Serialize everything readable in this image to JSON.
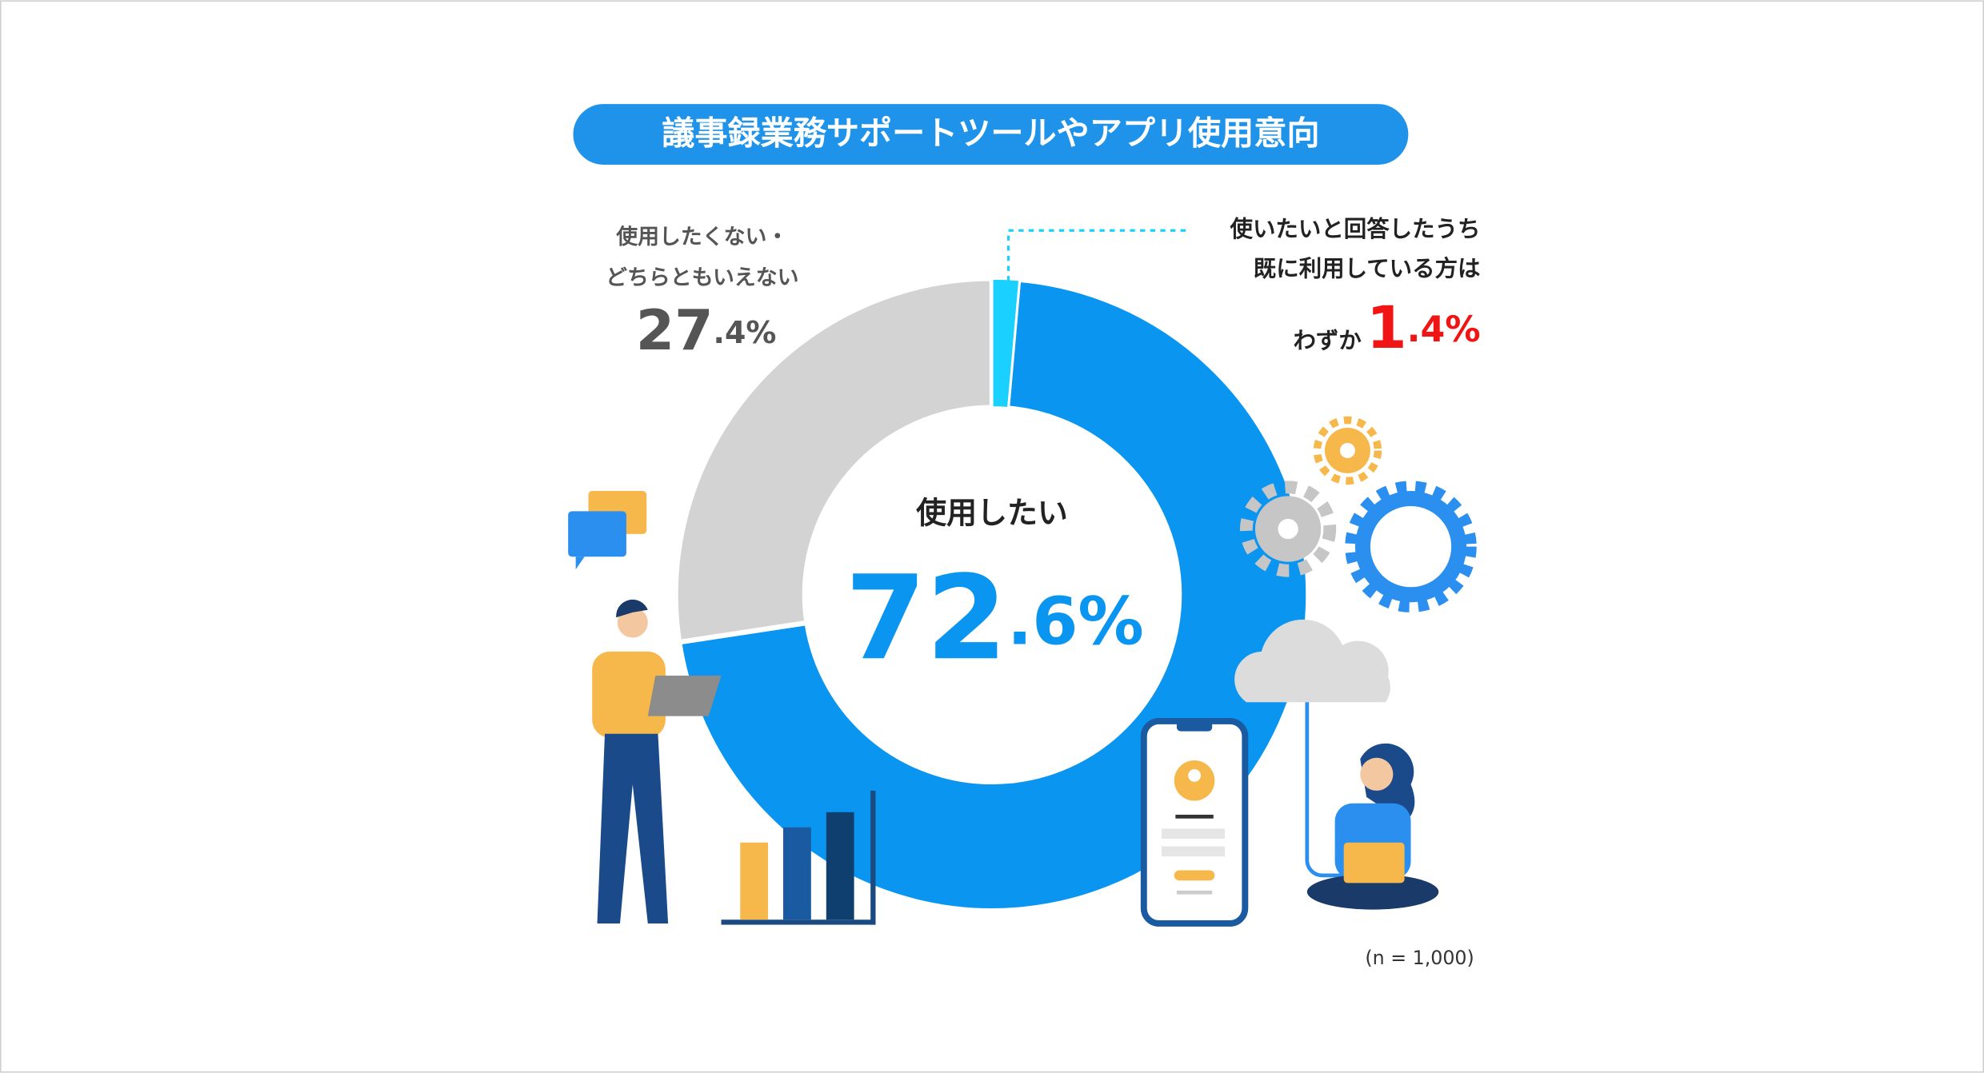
{
  "chart_data": {
    "type": "donut",
    "title": "議事録業務サポートツールやアプリ使用意向",
    "segments": [
      {
        "name_lines": [
          "使用したい"
        ],
        "value": 72.6,
        "value_label": "72.6%",
        "color": "#0a96f0"
      },
      {
        "name_lines": [
          "使用したくない・",
          "どちらともいえない"
        ],
        "value": 27.4,
        "value_label": "27.4%",
        "color": "#d3d3d3"
      }
    ],
    "highlight": {
      "lines": [
        "使いたいと回答したうち",
        "既に利用している方は"
      ],
      "prefix": "わずか",
      "value": 1.4,
      "value_label": "1.4%",
      "color": "#1ad0ff"
    },
    "note": "(n = 1,000)"
  }
}
